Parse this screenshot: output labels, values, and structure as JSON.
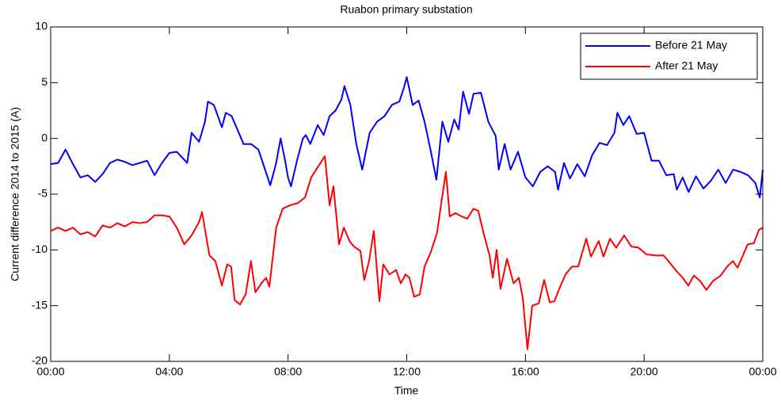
{
  "chart_data": {
    "type": "line",
    "title": "Ruabon primary substation",
    "xlabel": "Time",
    "ylabel": "Current difference 2014 to 2015 (A)",
    "xlim": [
      0,
      24
    ],
    "ylim": [
      -20,
      10
    ],
    "xticks": [
      {
        "value": 0,
        "label": "00:00"
      },
      {
        "value": 4,
        "label": "04:00"
      },
      {
        "value": 8,
        "label": "08:00"
      },
      {
        "value": 12,
        "label": "12:00"
      },
      {
        "value": 16,
        "label": "16:00"
      },
      {
        "value": 20,
        "label": "20:00"
      },
      {
        "value": 24,
        "label": "00:00"
      }
    ],
    "yticks": [
      -20,
      -15,
      -10,
      -5,
      0,
      5,
      10
    ],
    "legend": "upper-right",
    "series": [
      {
        "name": "Before 21 May",
        "color": "#0000ff",
        "x": [
          0,
          0.25,
          0.5,
          0.75,
          1,
          1.25,
          1.5,
          1.75,
          2,
          2.25,
          2.5,
          2.75,
          3,
          3.25,
          3.5,
          3.75,
          4,
          4.25,
          4.6,
          4.75,
          5,
          5.2,
          5.3,
          5.5,
          5.77,
          5.9,
          6.1,
          6.5,
          6.75,
          7,
          7.25,
          7.4,
          7.6,
          7.75,
          7.9,
          8,
          8.1,
          8.3,
          8.5,
          8.6,
          8.75,
          9,
          9.2,
          9.4,
          9.6,
          9.8,
          9.9,
          10.1,
          10.3,
          10.5,
          10.75,
          11,
          11.25,
          11.5,
          11.75,
          11.9,
          12,
          12.2,
          12.4,
          12.6,
          12.8,
          13,
          13.2,
          13.4,
          13.6,
          13.75,
          13.9,
          14.1,
          14.25,
          14.5,
          14.75,
          15,
          15.1,
          15.3,
          15.5,
          15.75,
          16,
          16.25,
          16.5,
          16.75,
          17,
          17.1,
          17.3,
          17.5,
          17.75,
          18,
          18.25,
          18.5,
          18.75,
          19,
          19.1,
          19.3,
          19.5,
          19.75,
          20,
          20.25,
          20.5,
          20.75,
          21,
          21.1,
          21.3,
          21.5,
          21.75,
          22,
          22.25,
          22.5,
          22.75,
          23,
          23.25,
          23.5,
          23.75,
          23.9,
          24
        ],
        "values": [
          -2.3,
          -2.2,
          -1.0,
          -2.3,
          -3.5,
          -3.3,
          -3.9,
          -3.2,
          -2.2,
          -1.9,
          -2.1,
          -2.4,
          -2.2,
          -2.0,
          -3.3,
          -2.2,
          -1.3,
          -1.2,
          -2.2,
          0.5,
          -0.3,
          1.5,
          3.3,
          3.0,
          1.0,
          2.3,
          2.0,
          -0.5,
          -0.5,
          -1.0,
          -3.0,
          -4.2,
          -2.2,
          0.0,
          -2.0,
          -3.5,
          -4.3,
          -2.0,
          0.0,
          0.3,
          -0.5,
          1.2,
          0.3,
          2.0,
          2.5,
          3.5,
          4.7,
          3.0,
          -0.5,
          -2.8,
          0.5,
          1.5,
          2.0,
          3.0,
          3.3,
          4.5,
          5.5,
          3.0,
          3.4,
          1.5,
          -1.0,
          -3.7,
          1.5,
          -0.3,
          1.7,
          0.8,
          4.2,
          2.2,
          4.0,
          4.1,
          1.5,
          0.2,
          -2.8,
          -0.5,
          -2.8,
          -1.2,
          -3.5,
          -4.3,
          -3.0,
          -2.5,
          -3.0,
          -4.6,
          -2.2,
          -3.6,
          -2.3,
          -3.4,
          -1.5,
          -0.4,
          -0.6,
          0.5,
          2.3,
          1.2,
          2.0,
          0.4,
          0.5,
          -2.0,
          -2.0,
          -3.3,
          -3.2,
          -4.6,
          -3.5,
          -4.8,
          -3.4,
          -4.5,
          -3.8,
          -2.8,
          -4.0,
          -2.8,
          -3.0,
          -3.3,
          -4.0,
          -5.3,
          -2.8
        ]
      },
      {
        "name": "After 21 May",
        "color": "#ff0000",
        "x": [
          0,
          0.25,
          0.5,
          0.75,
          1,
          1.25,
          1.5,
          1.75,
          2,
          2.25,
          2.5,
          2.75,
          3,
          3.25,
          3.5,
          3.75,
          4,
          4.25,
          4.5,
          4.75,
          5,
          5.1,
          5.35,
          5.55,
          5.77,
          5.95,
          6.08,
          6.2,
          6.38,
          6.57,
          6.75,
          6.9,
          7.1,
          7.26,
          7.37,
          7.6,
          7.82,
          8.06,
          8.33,
          8.57,
          8.78,
          9.02,
          9.24,
          9.4,
          9.53,
          9.72,
          9.88,
          10.07,
          10.22,
          10.44,
          10.57,
          10.73,
          10.89,
          11.08,
          11.21,
          11.42,
          11.64,
          11.8,
          11.96,
          12.09,
          12.25,
          12.44,
          12.6,
          12.81,
          13.02,
          13.18,
          13.32,
          13.45,
          13.64,
          13.85,
          14.04,
          14.25,
          14.41,
          14.6,
          14.79,
          14.9,
          15.03,
          15.16,
          15.38,
          15.6,
          15.78,
          15.91,
          16.07,
          16.23,
          16.45,
          16.63,
          16.82,
          16.98,
          17.14,
          17.35,
          17.57,
          17.78,
          18.05,
          18.21,
          18.47,
          18.63,
          18.85,
          19.06,
          19.33,
          19.57,
          19.81,
          20.08,
          20.4,
          20.66,
          20.88,
          21.06,
          21.3,
          21.49,
          21.68,
          21.89,
          22.1,
          22.32,
          22.58,
          22.8,
          22.99,
          23.15,
          23.33,
          23.49,
          23.7,
          23.87,
          24
        ],
        "values": [
          -8.3,
          -8.0,
          -8.3,
          -8.0,
          -8.6,
          -8.4,
          -8.8,
          -7.8,
          -8.0,
          -7.6,
          -7.9,
          -7.5,
          -7.6,
          -7.5,
          -6.9,
          -6.9,
          -7.0,
          -8.0,
          -9.5,
          -8.7,
          -7.5,
          -6.6,
          -10.5,
          -11.0,
          -13.2,
          -11.3,
          -11.5,
          -14.5,
          -14.9,
          -14.0,
          -11.0,
          -13.8,
          -13.0,
          -12.5,
          -13.3,
          -8.0,
          -6.3,
          -6.0,
          -5.8,
          -5.3,
          -3.5,
          -2.5,
          -1.6,
          -6.0,
          -4.3,
          -9.5,
          -8.0,
          -9.2,
          -9.7,
          -10.1,
          -12.7,
          -11.0,
          -8.3,
          -14.6,
          -11.3,
          -12.2,
          -11.8,
          -13.0,
          -12.2,
          -12.5,
          -14.2,
          -14.0,
          -11.5,
          -10.2,
          -8.5,
          -5.5,
          -3.0,
          -7.0,
          -6.7,
          -7.0,
          -7.2,
          -6.3,
          -6.5,
          -8.6,
          -10.5,
          -12.5,
          -10.0,
          -13.5,
          -10.8,
          -13.0,
          -12.5,
          -14.3,
          -18.9,
          -15.0,
          -14.8,
          -12.7,
          -14.7,
          -14.6,
          -13.5,
          -12.2,
          -11.5,
          -11.5,
          -9.0,
          -10.6,
          -9.2,
          -10.6,
          -9.0,
          -9.8,
          -8.7,
          -9.7,
          -9.8,
          -10.4,
          -10.5,
          -10.5,
          -11.2,
          -11.8,
          -12.5,
          -13.2,
          -12.3,
          -12.8,
          -13.6,
          -12.8,
          -12.3,
          -11.5,
          -11.0,
          -11.6,
          -10.5,
          -9.5,
          -9.4,
          -8.2,
          -8.0
        ]
      }
    ]
  }
}
